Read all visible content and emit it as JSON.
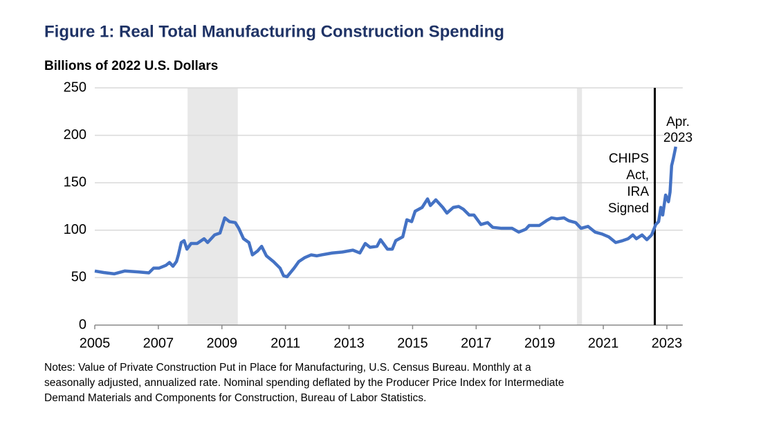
{
  "chart_data": {
    "type": "line",
    "title": "Figure 1: Real Total Manufacturing Construction Spending",
    "subtitle": "Billions of 2022 U.S. Dollars",
    "notes": [
      "Notes: Value of Private Construction Put in Place for Manufacturing, U.S. Census Bureau. Monthly at a",
      "seasonally adjusted, annualized rate. Nominal spending deflated by the Producer Price Index for Intermediate",
      "Demand Materials and Components for Construction, Bureau of Labor Statistics."
    ],
    "xlim": [
      2005,
      2023.5
    ],
    "xticks": [
      2005,
      2007,
      2009,
      2011,
      2013,
      2015,
      2017,
      2019,
      2021,
      2023
    ],
    "ylim": [
      0,
      250
    ],
    "yticks": [
      0,
      50,
      100,
      150,
      200,
      250
    ],
    "grid": true,
    "recessions": [
      [
        2007.92,
        2009.5
      ],
      [
        2020.17,
        2020.33
      ]
    ],
    "recession_color": "#e8e8e8",
    "event_line": {
      "x": 2022.62,
      "color": "#000000"
    },
    "annotations": [
      {
        "lines": [
          "CHIPS",
          "Act,",
          "IRA",
          "Signed"
        ]
      },
      {
        "lines": [
          "Apr.",
          "2023"
        ]
      }
    ],
    "series": [
      {
        "name": "Real Total Manufacturing Construction Spending",
        "color": "#4472c4",
        "x": [
          2005.0,
          2005.28,
          2005.61,
          2005.94,
          2006.37,
          2006.7,
          2006.85,
          2007.02,
          2007.24,
          2007.35,
          2007.46,
          2007.57,
          2007.63,
          2007.72,
          2007.81,
          2007.9,
          2008.03,
          2008.22,
          2008.44,
          2008.55,
          2008.77,
          2008.94,
          2009.09,
          2009.24,
          2009.42,
          2009.53,
          2009.68,
          2009.85,
          2009.96,
          2010.12,
          2010.25,
          2010.4,
          2010.62,
          2010.83,
          2010.94,
          2011.05,
          2011.27,
          2011.42,
          2011.6,
          2011.81,
          2011.99,
          2012.14,
          2012.47,
          2012.79,
          2013.12,
          2013.34,
          2013.51,
          2013.66,
          2013.88,
          2013.99,
          2014.21,
          2014.36,
          2014.47,
          2014.69,
          2014.82,
          2014.97,
          2015.08,
          2015.3,
          2015.47,
          2015.56,
          2015.73,
          2015.95,
          2016.08,
          2016.28,
          2016.45,
          2016.6,
          2016.78,
          2016.93,
          2017.15,
          2017.36,
          2017.52,
          2017.8,
          2018.13,
          2018.34,
          2018.56,
          2018.67,
          2018.99,
          2019.21,
          2019.37,
          2019.54,
          2019.76,
          2019.91,
          2020.13,
          2020.3,
          2020.52,
          2020.74,
          2020.96,
          2021.17,
          2021.39,
          2021.61,
          2021.78,
          2021.93,
          2022.04,
          2022.22,
          2022.37,
          2022.52,
          2022.65,
          2022.74,
          2022.81,
          2022.87,
          2022.96,
          2023.05,
          2023.1,
          2023.15,
          2023.2,
          2023.28
        ],
        "values": [
          57,
          55.4,
          54,
          57,
          56,
          55,
          60,
          60,
          63,
          66,
          62,
          67,
          74,
          87,
          89,
          80,
          86,
          86,
          91,
          87,
          95,
          97,
          113,
          109,
          108,
          102,
          91,
          87,
          74,
          78,
          83,
          73,
          67,
          60,
          52,
          51,
          60,
          67,
          71,
          74,
          73,
          74,
          76,
          77,
          79,
          76,
          86,
          82,
          83,
          90,
          80,
          80,
          89,
          93,
          111,
          109,
          120,
          124,
          133,
          126,
          132,
          124,
          118,
          124,
          125,
          122,
          116,
          116,
          106,
          108,
          103,
          102,
          102,
          98,
          101,
          105,
          105,
          110,
          113,
          112,
          113,
          110,
          108,
          102,
          104,
          98,
          96,
          93,
          87,
          89,
          91,
          95,
          91,
          95,
          90,
          95,
          106,
          109,
          124,
          116,
          137,
          130,
          140,
          168,
          175,
          188
        ]
      }
    ]
  }
}
